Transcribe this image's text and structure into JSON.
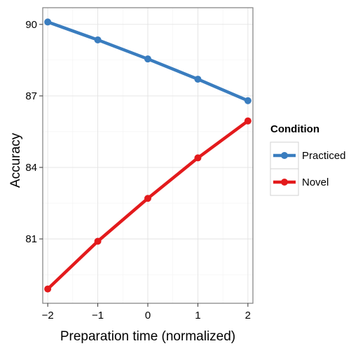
{
  "chart_data": {
    "type": "line",
    "x": [
      -2,
      -1,
      0,
      1,
      2
    ],
    "x_tick_labels": [
      "−2",
      "−1",
      "0",
      "1",
      "2"
    ],
    "xlim": [
      -2.1,
      2.1
    ],
    "ylim": [
      78.3,
      90.7
    ],
    "y_ticks": [
      81,
      84,
      87,
      90
    ],
    "y_tick_labels": [
      "81",
      "84",
      "87",
      "90"
    ],
    "xlabel": "Preparation time (normalized)",
    "ylabel": "Accuracy",
    "grid": true,
    "legend": {
      "title": "Condition",
      "position": "right"
    },
    "series": [
      {
        "name": "Practiced",
        "color": "#3a7dbf",
        "values": [
          90.1,
          89.35,
          88.55,
          87.7,
          86.8
        ]
      },
      {
        "name": "Novel",
        "color": "#e31a1c",
        "values": [
          78.9,
          80.9,
          82.7,
          84.4,
          85.95
        ]
      }
    ]
  }
}
